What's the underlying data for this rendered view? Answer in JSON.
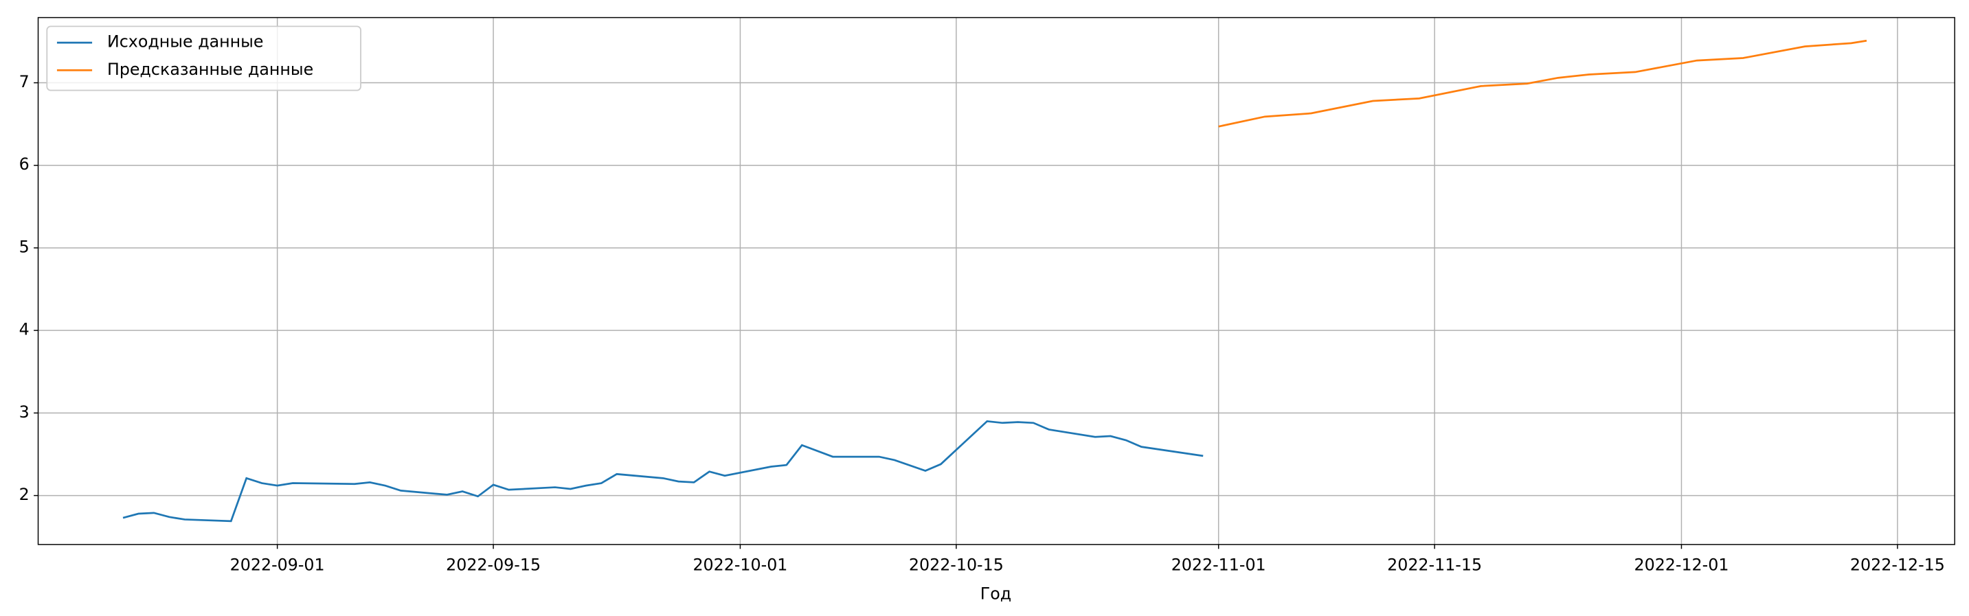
{
  "chart_data": {
    "type": "line",
    "xlabel": "Год",
    "xlim": [
      "2022-08-16T12:00",
      "2022-12-18T17:00"
    ],
    "ylim": [
      1.407,
      7.79
    ],
    "xticks": [
      "2022-09-01",
      "2022-09-15",
      "2022-10-01",
      "2022-10-15",
      "2022-11-01",
      "2022-11-15",
      "2022-12-01",
      "2022-12-15"
    ],
    "yticks": [
      2,
      3,
      4,
      5,
      6,
      7
    ],
    "grid": true,
    "legend": "upper left",
    "series": [
      {
        "name": "Исходные данные",
        "color": "#1f77b4",
        "x": [
          "2022-08-22",
          "2022-08-23",
          "2022-08-24",
          "2022-08-25",
          "2022-08-26",
          "2022-08-29",
          "2022-08-30",
          "2022-08-31",
          "2022-09-01",
          "2022-09-02",
          "2022-09-06",
          "2022-09-07",
          "2022-09-08",
          "2022-09-09",
          "2022-09-12",
          "2022-09-13",
          "2022-09-14",
          "2022-09-15",
          "2022-09-16",
          "2022-09-19",
          "2022-09-20",
          "2022-09-21",
          "2022-09-22",
          "2022-09-23",
          "2022-09-26",
          "2022-09-27",
          "2022-09-28",
          "2022-09-29",
          "2022-09-30",
          "2022-10-03",
          "2022-10-04",
          "2022-10-05",
          "2022-10-07",
          "2022-10-10",
          "2022-10-11",
          "2022-10-13",
          "2022-10-14",
          "2022-10-17",
          "2022-10-18",
          "2022-10-19",
          "2022-10-20",
          "2022-10-21",
          "2022-10-24",
          "2022-10-25",
          "2022-10-26",
          "2022-10-27",
          "2022-10-31"
        ],
        "values": [
          1.73,
          1.78,
          1.79,
          1.74,
          1.71,
          1.69,
          2.21,
          2.15,
          2.12,
          2.15,
          2.14,
          2.16,
          2.12,
          2.06,
          2.01,
          2.05,
          1.99,
          2.13,
          2.07,
          2.1,
          2.08,
          2.12,
          2.15,
          2.26,
          2.21,
          2.17,
          2.16,
          2.29,
          2.24,
          2.35,
          2.37,
          2.61,
          2.47,
          2.47,
          2.43,
          2.3,
          2.38,
          2.9,
          2.88,
          2.89,
          2.88,
          2.8,
          2.71,
          2.72,
          2.67,
          2.59,
          2.48
        ]
      },
      {
        "name": "Предсказанные данные",
        "color": "#ff7f0e",
        "x": [
          "2022-11-01",
          "2022-11-04",
          "2022-11-07",
          "2022-11-11",
          "2022-11-14",
          "2022-11-18",
          "2022-11-21",
          "2022-11-23",
          "2022-11-25",
          "2022-11-28",
          "2022-12-02",
          "2022-12-05",
          "2022-12-09",
          "2022-12-12",
          "2022-12-13"
        ],
        "values": [
          6.47,
          6.59,
          6.63,
          6.78,
          6.81,
          6.96,
          6.99,
          7.06,
          7.1,
          7.13,
          7.27,
          7.3,
          7.44,
          7.48,
          7.51
        ]
      }
    ]
  }
}
